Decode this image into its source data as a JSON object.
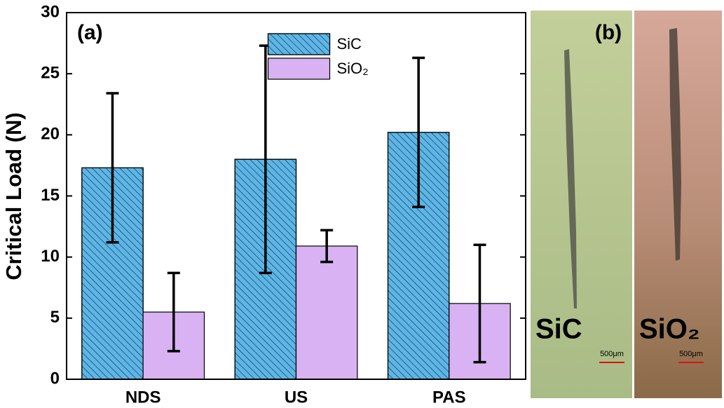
{
  "chart_data": {
    "type": "bar",
    "annotation": "(a)",
    "ylabel": "Critical Load (N)",
    "categories": [
      "NDS",
      "US",
      "PAS"
    ],
    "series": [
      {
        "name": "SiC",
        "color": "#5cb6e6",
        "hatch": true,
        "values": [
          17.3,
          18.0,
          20.2
        ],
        "errors": [
          6.1,
          9.3,
          6.1
        ]
      },
      {
        "name": "SiO₂",
        "color": "#d8b2f2",
        "hatch": false,
        "values": [
          5.5,
          10.9,
          6.2
        ],
        "errors": [
          3.2,
          1.3,
          4.8
        ]
      }
    ],
    "ylim": [
      0,
      30
    ],
    "yticks": [
      0,
      5,
      10,
      15,
      20,
      25,
      30
    ],
    "legend": "upper center"
  },
  "micrograph": {
    "label": "(b)",
    "panels": [
      {
        "label": "SiC",
        "scale_bar": "500μm"
      },
      {
        "label": "SiO₂",
        "scale_bar": "500μm"
      }
    ]
  }
}
